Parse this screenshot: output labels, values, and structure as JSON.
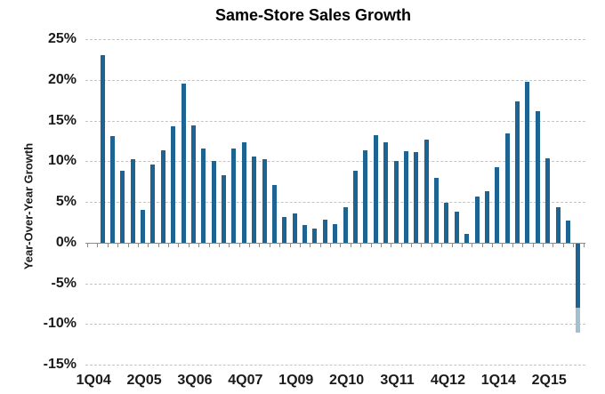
{
  "chart_data": {
    "type": "bar",
    "title": "Same-Store Sales Growth",
    "ylabel": "Year-Over-Year Growth",
    "xlabel": "",
    "ylim": [
      -15,
      25
    ],
    "grid": "horizontal dashed gridlines every 5%",
    "legend": "none",
    "y_ticks": [
      {
        "value": 25,
        "label": "25%"
      },
      {
        "value": 20,
        "label": "20%"
      },
      {
        "value": 15,
        "label": "15%"
      },
      {
        "value": 10,
        "label": "10%"
      },
      {
        "value": 5,
        "label": "5%"
      },
      {
        "value": 0,
        "label": "0%"
      },
      {
        "value": -5,
        "label": "-5%"
      },
      {
        "value": -10,
        "label": "-10%"
      },
      {
        "value": -15,
        "label": "-15%"
      }
    ],
    "x_axis_labels": [
      "1Q04",
      "2Q05",
      "3Q06",
      "4Q07",
      "1Q09",
      "2Q10",
      "3Q11",
      "4Q12",
      "1Q14",
      "2Q15"
    ],
    "x_label_category_step": 5,
    "categories": [
      "1Q04",
      "2Q04",
      "3Q04",
      "4Q04",
      "1Q05",
      "2Q05",
      "3Q05",
      "4Q05",
      "1Q06",
      "2Q06",
      "3Q06",
      "4Q06",
      "1Q07",
      "2Q07",
      "3Q07",
      "4Q07",
      "1Q08",
      "2Q08",
      "3Q08",
      "4Q08",
      "1Q09",
      "2Q09",
      "3Q09",
      "4Q09",
      "1Q10",
      "2Q10",
      "3Q10",
      "4Q10",
      "1Q11",
      "2Q11",
      "3Q11",
      "4Q11",
      "1Q12",
      "2Q12",
      "3Q12",
      "4Q12",
      "1Q13",
      "2Q13",
      "3Q13",
      "4Q13",
      "1Q14",
      "2Q14",
      "3Q14",
      "4Q14",
      "1Q15",
      "2Q15",
      "3Q15",
      "4Q15",
      "1Q16"
    ],
    "values": [
      null,
      23.1,
      13.1,
      8.9,
      10.3,
      4.0,
      9.6,
      11.4,
      14.3,
      19.6,
      14.4,
      11.6,
      10.1,
      8.3,
      11.6,
      12.4,
      10.6,
      10.3,
      7.1,
      3.2,
      3.6,
      2.2,
      1.7,
      2.8,
      2.3,
      4.4,
      8.8,
      11.4,
      13.2,
      12.4,
      10.1,
      11.3,
      11.1,
      12.7,
      8.0,
      4.9,
      3.8,
      1.1,
      5.7,
      6.3,
      9.3,
      13.4,
      17.4,
      19.8,
      16.2,
      10.4,
      4.4,
      2.7,
      -11.0
    ],
    "final_bar_two_tone": {
      "category": "1Q16",
      "solid_to_pct": -7.9,
      "total_pct": -11.0,
      "note": "last bar drawn solid blue to -7.9% then light blue to about -11%"
    },
    "colors": {
      "bar": "#1e6492",
      "bar_light_segment": "#a3c0d1",
      "gridline": "#c4c4c4",
      "axis_line": "#8c8c8c",
      "tick_label_text": "#1a1a1a",
      "title_text": "#000000",
      "background": "#ffffff"
    }
  }
}
